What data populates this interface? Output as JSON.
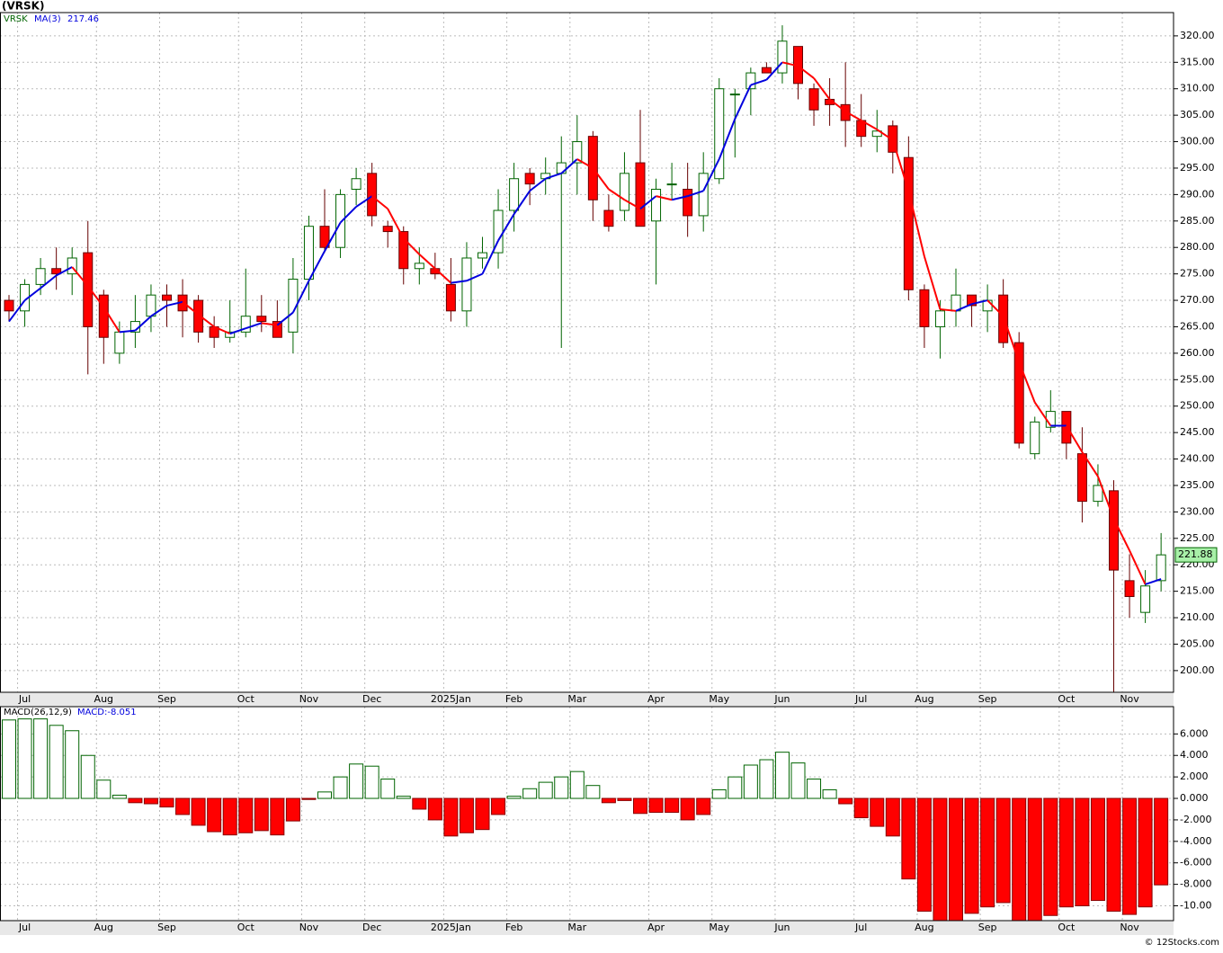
{
  "chart_data": [
    {
      "type": "candlestick",
      "title": "(VRSK)",
      "symbol": "VRSK",
      "ma_name": "MA(3)",
      "ma_label": "217.46",
      "categories": [
        null,
        "Jul",
        null,
        null,
        null,
        null,
        "Aug",
        null,
        null,
        null,
        "Sep",
        null,
        null,
        null,
        null,
        "Oct",
        null,
        null,
        null,
        "Nov",
        null,
        null,
        null,
        "Dec",
        null,
        null,
        null,
        null,
        "2025Jan",
        null,
        null,
        null,
        "Feb",
        null,
        null,
        null,
        "Mar",
        null,
        null,
        null,
        null,
        "Apr",
        null,
        null,
        null,
        "May",
        null,
        null,
        null,
        "Jun",
        null,
        null,
        null,
        null,
        "Jul",
        null,
        null,
        null,
        "Aug",
        null,
        null,
        null,
        "Sep",
        null,
        null,
        null,
        null,
        "Oct",
        null,
        null,
        null,
        "Nov",
        null,
        null
      ],
      "open": [
        270,
        268,
        273,
        276,
        275,
        279,
        271,
        260,
        264,
        267,
        271,
        271,
        270,
        265,
        263,
        264,
        267,
        266,
        264,
        274,
        284,
        280,
        291,
        294,
        284,
        283,
        276,
        276,
        273,
        268,
        278,
        279,
        287,
        294,
        293,
        294,
        296,
        301,
        287,
        287,
        296,
        285,
        292,
        291,
        286,
        293,
        309,
        310,
        314,
        313,
        318,
        310,
        308,
        307,
        304,
        301,
        303,
        297,
        272,
        265,
        268,
        271,
        268,
        271,
        262,
        241,
        246,
        249,
        241,
        232,
        234,
        217,
        211,
        217
      ],
      "high": [
        271,
        274,
        278,
        280,
        280,
        285,
        272,
        266,
        271,
        273,
        273,
        274,
        271,
        267,
        270,
        276,
        271,
        270,
        278,
        286,
        291,
        291,
        295,
        296,
        285,
        284,
        280,
        279,
        278,
        281,
        282,
        291,
        296,
        295,
        297,
        301,
        305,
        302,
        290,
        298,
        306,
        293,
        296,
        296,
        298,
        312,
        310,
        314,
        315,
        322,
        318,
        311,
        312,
        315,
        309,
        306,
        304,
        301,
        273,
        270,
        276,
        271,
        273,
        274,
        264,
        248,
        253,
        249,
        246,
        239,
        236,
        222,
        219,
        226
      ],
      "low": [
        266,
        265,
        271,
        272,
        271,
        256,
        258,
        258,
        261,
        264,
        265,
        263,
        262,
        261,
        262,
        263,
        264,
        263,
        260,
        270,
        279,
        278,
        288,
        284,
        280,
        273,
        273,
        274,
        266,
        265,
        276,
        276,
        283,
        288,
        290,
        261,
        290,
        285,
        283,
        285,
        284,
        273,
        289,
        282,
        283,
        292,
        297,
        305,
        313,
        311,
        308,
        303,
        303,
        299,
        299,
        298,
        294,
        270,
        261,
        259,
        265,
        265,
        264,
        261,
        242,
        240,
        245,
        240,
        228,
        231,
        194,
        210,
        209,
        215
      ],
      "close": [
        268,
        273,
        276,
        275,
        278,
        265,
        263,
        264,
        266,
        271,
        270,
        268,
        264,
        263,
        264,
        267,
        266,
        263,
        274,
        284,
        280,
        290,
        293,
        286,
        283,
        276,
        277,
        275,
        268,
        278,
        279,
        287,
        293,
        292,
        294,
        296,
        300,
        289,
        284,
        294,
        284,
        291,
        292,
        286,
        294,
        310,
        309,
        313,
        313,
        319,
        311,
        306,
        307,
        304,
        301,
        302,
        298,
        272,
        265,
        268,
        271,
        269,
        270,
        262,
        243,
        247,
        249,
        243,
        232,
        235,
        219,
        214,
        216,
        221.88
      ],
      "ma": [
        266,
        270,
        272.3,
        274.7,
        276.3,
        272.7,
        268.7,
        264,
        264.3,
        267,
        269,
        269.7,
        267.3,
        265,
        263.7,
        264.7,
        265.7,
        265.3,
        267.7,
        273.7,
        279.3,
        284.7,
        287.7,
        289.7,
        287.3,
        281.7,
        278.7,
        276,
        273.3,
        273.7,
        275,
        281.3,
        286.3,
        290.7,
        293,
        294,
        296.7,
        295,
        291,
        289,
        287.3,
        289.7,
        289,
        289.7,
        290.7,
        296.7,
        304.3,
        310.7,
        311.7,
        315,
        314.3,
        312,
        308,
        305.7,
        304,
        302.3,
        300.3,
        290.7,
        278.3,
        268.3,
        268,
        269.3,
        270,
        267,
        258.3,
        250.7,
        246.3,
        246.3,
        241.3,
        236.7,
        228.7,
        222.7,
        216.3,
        217.3
      ],
      "up_color": "#006400",
      "down_color": "#ff0000",
      "ma_up_color": "#0000dd",
      "ma_down_color": "#ff0000",
      "ylim": [
        195.9,
        324.4
      ],
      "yticks": [
        {
          "value": 200,
          "label": "200.00"
        },
        {
          "value": 205,
          "label": "205.00"
        },
        {
          "value": 210,
          "label": "210.00"
        },
        {
          "value": 215,
          "label": "215.00"
        },
        {
          "value": 220,
          "label": "220.00"
        },
        {
          "value": 225,
          "label": "225.00"
        },
        {
          "value": 230,
          "label": "230.00"
        },
        {
          "value": 235,
          "label": "235.00"
        },
        {
          "value": 240,
          "label": "240.00"
        },
        {
          "value": 245,
          "label": "245.00"
        },
        {
          "value": 250,
          "label": "250.00"
        },
        {
          "value": 255,
          "label": "255.00"
        },
        {
          "value": 260,
          "label": "260.00"
        },
        {
          "value": 265,
          "label": "265.00"
        },
        {
          "value": 270,
          "label": "270.00"
        },
        {
          "value": 275,
          "label": "275.00"
        },
        {
          "value": 280,
          "label": "280.00"
        },
        {
          "value": 285,
          "label": "285.00"
        },
        {
          "value": 290,
          "label": "290.00"
        },
        {
          "value": 295,
          "label": "295.00"
        },
        {
          "value": 300,
          "label": "300.00"
        },
        {
          "value": 305,
          "label": "305.00"
        },
        {
          "value": 310,
          "label": "310.00"
        },
        {
          "value": 315,
          "label": "315.00"
        },
        {
          "value": 320,
          "label": "320.00"
        }
      ],
      "grid": true
    },
    {
      "type": "bar",
      "title": "MACD(26,12,9)",
      "value_label": "MACD:-8.051",
      "values": [
        7.3,
        7.4,
        7.4,
        6.8,
        6.3,
        4.0,
        1.7,
        0.3,
        -0.4,
        -0.5,
        -0.8,
        -1.5,
        -2.5,
        -3.1,
        -3.4,
        -3.2,
        -3.0,
        -3.4,
        -2.1,
        -0.1,
        0.6,
        2.0,
        3.2,
        3.0,
        1.8,
        0.2,
        -1.0,
        -2.0,
        -3.5,
        -3.2,
        -2.9,
        -1.5,
        0.2,
        0.9,
        1.5,
        2.0,
        2.5,
        1.2,
        -0.4,
        -0.2,
        -1.4,
        -1.3,
        -1.3,
        -2.0,
        -1.5,
        0.8,
        2.0,
        3.1,
        3.6,
        4.3,
        3.3,
        1.8,
        0.8,
        -0.5,
        -1.8,
        -2.6,
        -3.5,
        -7.5,
        -10.5,
        -11.7,
        -11.4,
        -10.7,
        -10.1,
        -9.7,
        -11.7,
        -11.6,
        -10.9,
        -10.1,
        -10.0,
        -9.5,
        -10.5,
        -10.8,
        -10.1,
        -8.051
      ],
      "pos_color": "#006400",
      "neg_color": "#ff0000",
      "ylim": [
        -11.38,
        8.54
      ],
      "yticks": [
        {
          "value": -10,
          "label": "-10.00"
        },
        {
          "value": -8,
          "label": "-8.000"
        },
        {
          "value": -6,
          "label": "-6.000"
        },
        {
          "value": -4,
          "label": "-4.000"
        },
        {
          "value": -2,
          "label": "-2.000"
        },
        {
          "value": 0,
          "label": "0.000"
        },
        {
          "value": 2,
          "label": "2.000"
        },
        {
          "value": 4,
          "label": "4.000"
        },
        {
          "value": 6,
          "label": "6.000"
        }
      ],
      "grid": true
    }
  ],
  "footer": "© 12Stocks.com"
}
